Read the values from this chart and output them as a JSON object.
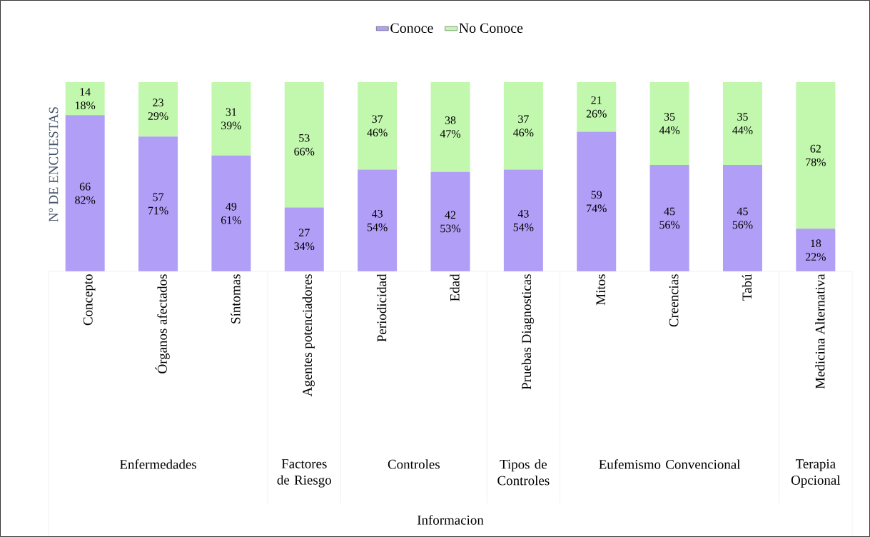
{
  "chart_data": {
    "type": "bar",
    "stacked": true,
    "ylabel": "Nº DE ENCUESTAS",
    "categories": [
      "Concepto",
      "Órganos afectados",
      "Síntomas",
      "Agentes potenciadores",
      "Periodicidad",
      "Edad",
      "Pruebas Diagnosticas",
      "Mitos",
      "Creencias",
      "Tabú",
      "Medicina Alternativa"
    ],
    "series": [
      {
        "name": "Conoce",
        "color": "#b09ef7",
        "values": [
          66,
          57,
          49,
          27,
          43,
          42,
          43,
          59,
          45,
          45,
          18
        ],
        "value_labels": [
          "66 82%",
          "57 71%",
          "49 61%",
          "27 34%",
          "43 54%",
          "42 53%",
          "43 54%",
          "59 74%",
          "45 56%",
          "45 56%",
          "18 22%"
        ]
      },
      {
        "name": "No Conoce",
        "color": "#c2f7ae",
        "values": [
          14,
          23,
          31,
          53,
          37,
          38,
          37,
          21,
          35,
          35,
          62
        ],
        "value_labels": [
          "14 18%",
          "23 29%",
          "31 39%",
          "53 66%",
          "37 46%",
          "38 47%",
          "37 46%",
          "21 26%",
          "35 44%",
          "35 44%",
          "62 78%"
        ]
      }
    ],
    "annotations": [
      "Enfermedades",
      "Factores de Riesgo",
      "Controles",
      "Tipos de Controles",
      "Eufemismo Convencional",
      "Terapia Opcional",
      "Informacion"
    ],
    "tick_labels": "x",
    "legend": "top"
  }
}
